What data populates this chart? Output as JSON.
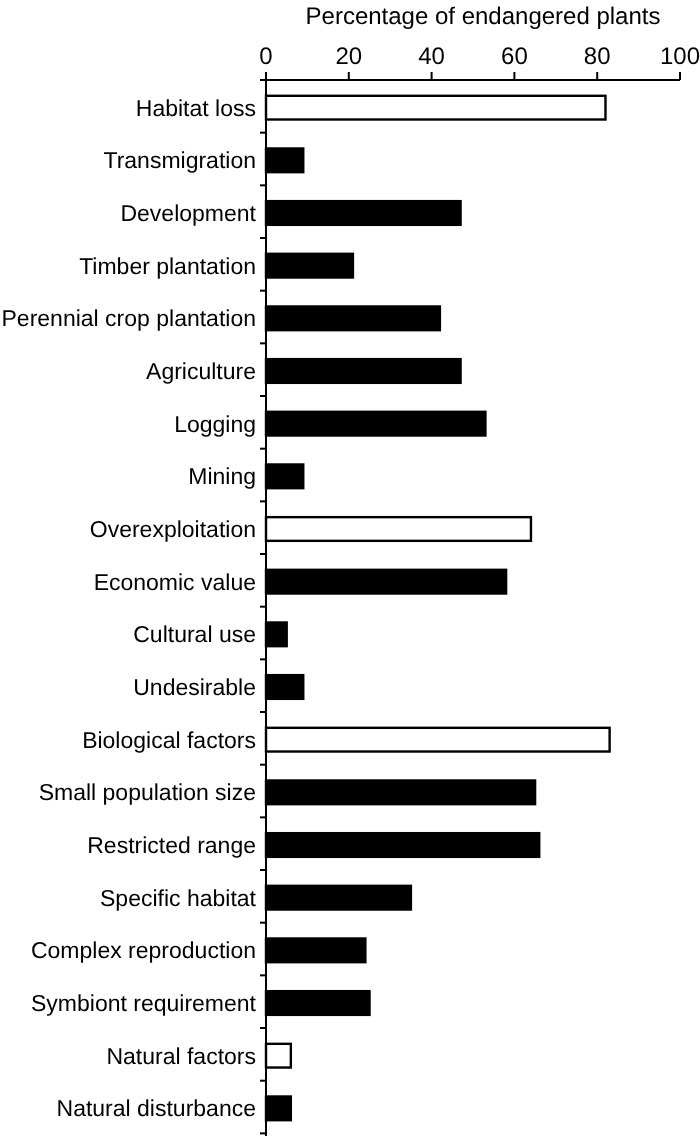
{
  "chart_data": {
    "type": "bar",
    "orientation": "horizontal",
    "xlabel": "Percentage of endangered plants",
    "categories": [
      "Habitat loss",
      "Transmigration",
      "Development",
      "Timber plantation",
      "Perennial crop plantation",
      "Agriculture",
      "Logging",
      "Mining",
      "Overexploitation",
      "Economic value",
      "Cultural use",
      "Undesirable",
      "Biological factors",
      "Small population size",
      "Restricted range",
      "Specific habitat",
      "Complex reproduction",
      "Symbiont requirement",
      "Natural factors",
      "Natural disturbance"
    ],
    "values": [
      82,
      9,
      47,
      21,
      42,
      47,
      53,
      9,
      64,
      58,
      5,
      9,
      83,
      65,
      66,
      35,
      24,
      25,
      6,
      6
    ],
    "colors": [
      "#ffffff",
      "#000000",
      "#000000",
      "#000000",
      "#000000",
      "#000000",
      "#000000",
      "#000000",
      "#ffffff",
      "#000000",
      "#000000",
      "#000000",
      "#ffffff",
      "#000000",
      "#000000",
      "#000000",
      "#000000",
      "#000000",
      "#ffffff",
      "#000000"
    ],
    "xlim": [
      0,
      100
    ],
    "xticks": [
      0,
      20,
      40,
      60,
      80,
      100
    ],
    "grid": false
  }
}
